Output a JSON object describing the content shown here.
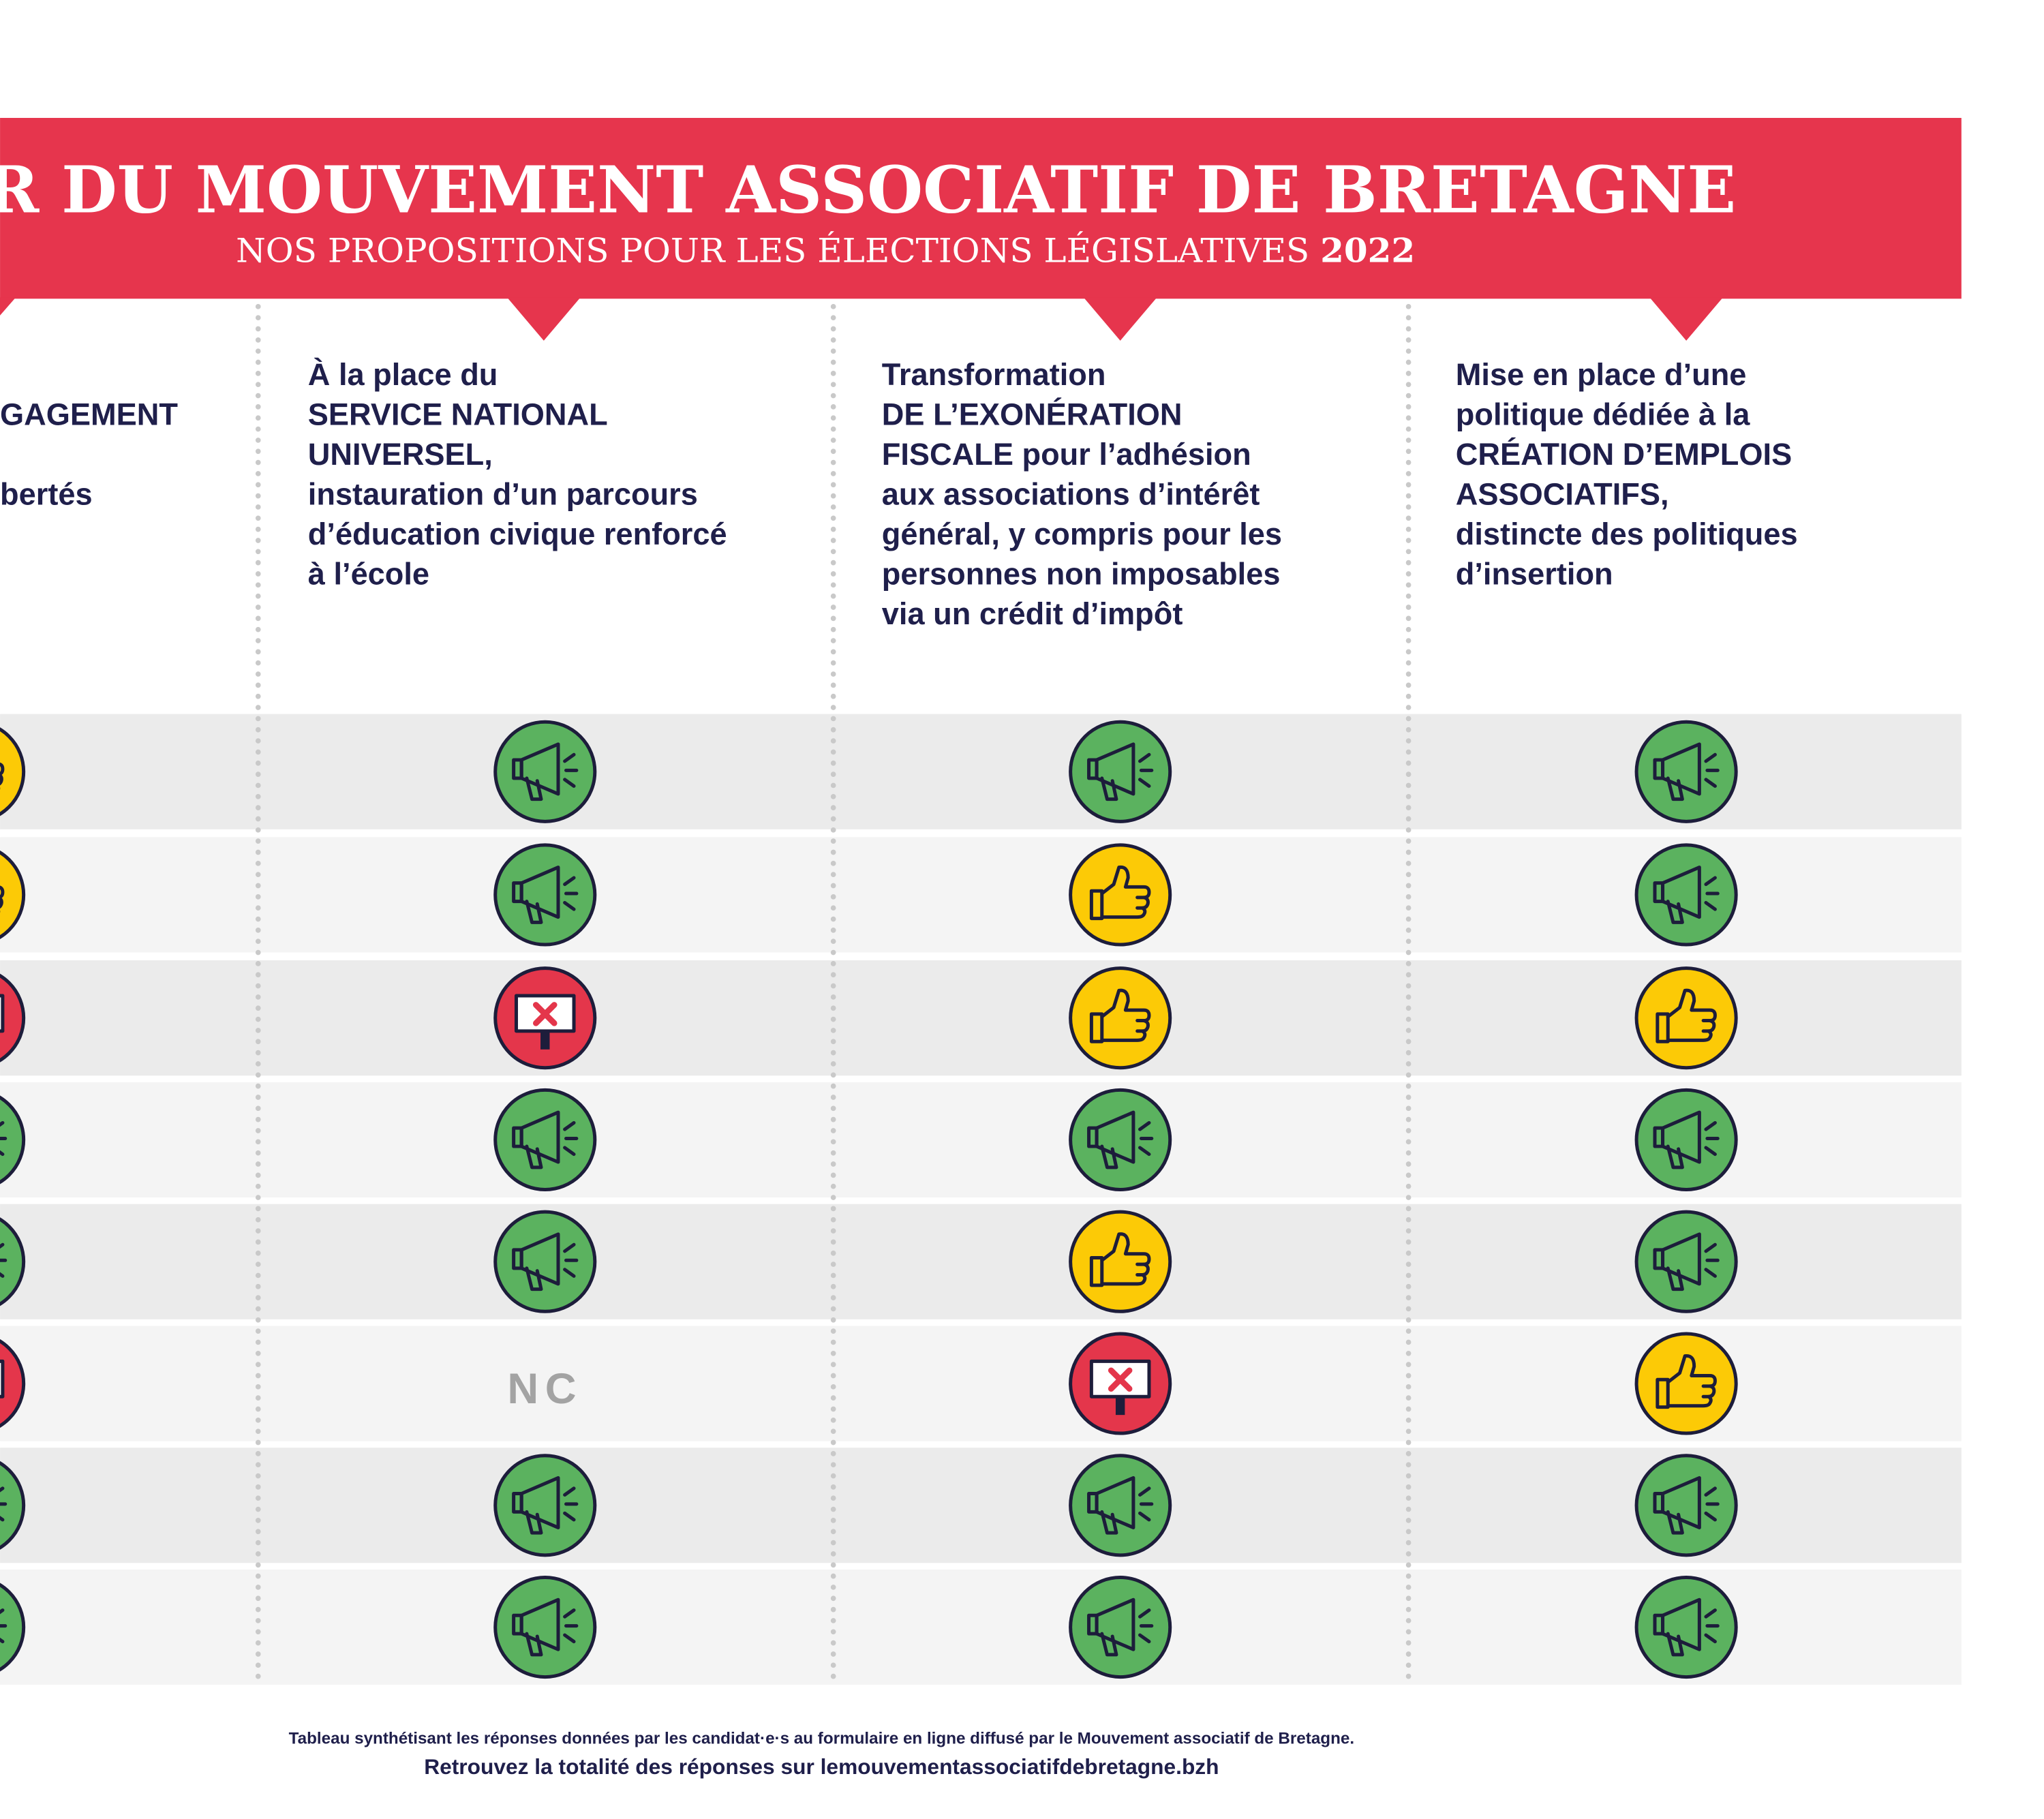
{
  "header": {
    "title": "AIDOYER DU MOUVEMENT ASSOCIATIF DE BRETAGNE",
    "subtitle": "NOS PROPOSITIONS POUR LES ÉLECTIONS LÉGISLATIVES",
    "subtitle_year": "2022"
  },
  "columns": [
    {
      "heading": [
        "GAGEMENT",
        "bertés"
      ]
    },
    {
      "heading": [
        "À la place du",
        "SERVICE NATIONAL",
        "UNIVERSEL,",
        "instauration d’un parcours",
        "d’éducation civique renforcé",
        "à l’école"
      ]
    },
    {
      "heading": [
        "Transformation",
        "DE L’EXONÉRATION",
        "FISCALE pour l’adhésion",
        "aux associations d’intérêt",
        "général, y compris pour les",
        "personnes non imposables",
        "via un crédit d’impôt"
      ]
    },
    {
      "heading": [
        "Mise en place d’une",
        "politique  dédiée à la",
        "CRÉATION D’EMPLOIS",
        "ASSOCIATIFS,",
        "distincte des politiques",
        "d’insertion"
      ]
    }
  ],
  "table": {
    "missing_answer": "NC"
  },
  "footer": {
    "note": "Tableau synthétisant les réponses données par les candidat·e·s au formulaire en ligne diffusé par le Mouvement associatif de Bretagne.",
    "link_text": "Retrouvez la totalité des réponses sur",
    "link": "lemouvementassociatifdebretagne.bzh"
  }
}
